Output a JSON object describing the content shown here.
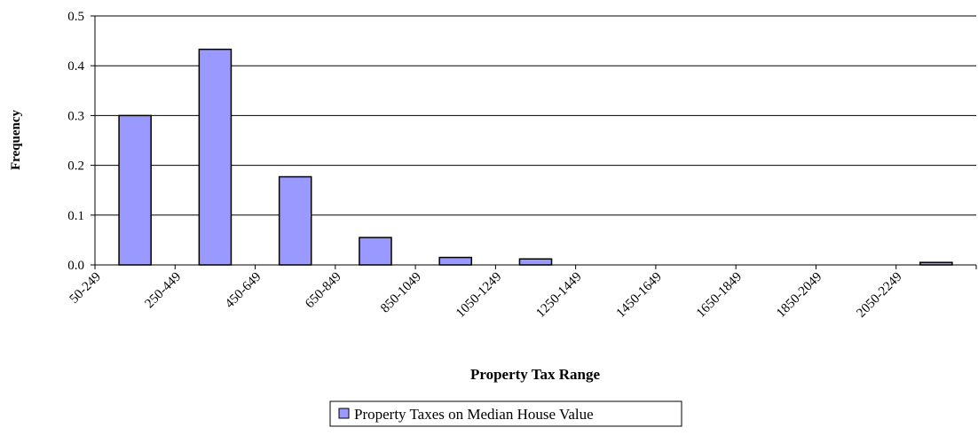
{
  "chart_data": {
    "type": "bar",
    "x_label": "Property Tax Range",
    "y_label": "Frequency",
    "categories": [
      "50-249",
      "250-449",
      "450-649",
      "650-849",
      "850-1049",
      "1050-1249",
      "1250-1449",
      "1450-1649",
      "1650-1849",
      "1850-2049",
      "2050-2249"
    ],
    "series": [
      {
        "name": "Property Taxes on Median House Value",
        "color": "#9999ff",
        "values": [
          0.3,
          0.433,
          0.177,
          0.055,
          0.015,
          0.012,
          0,
          0,
          0,
          0,
          0.005
        ]
      }
    ],
    "ylim": [
      0,
      0.5
    ],
    "yticks": [
      {
        "value": 0,
        "label": "0.0"
      },
      0.1,
      0.2,
      0.3,
      0.4,
      0.5
    ],
    "grid": true,
    "legend": "bottom"
  }
}
